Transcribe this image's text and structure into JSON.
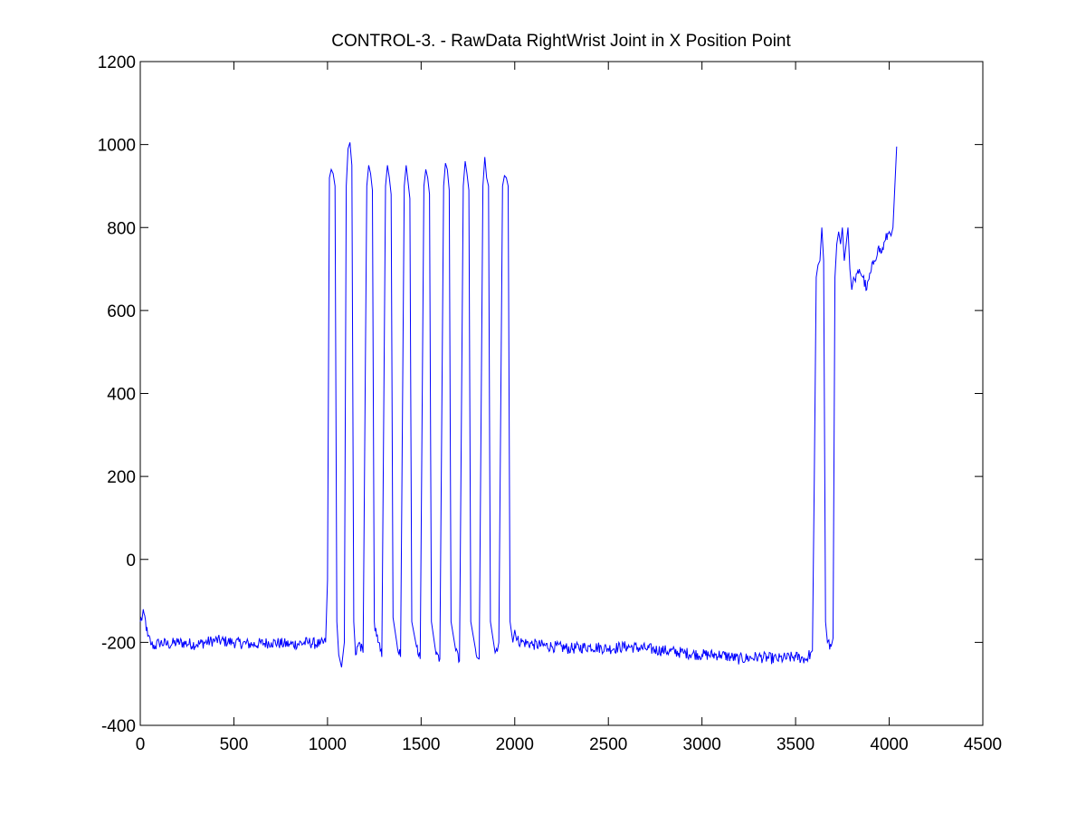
{
  "figure": {
    "background_color": "#ffffff"
  },
  "chart_data": {
    "type": "line",
    "title": "CONTROL-3. - RawData RightWrist Joint in X Position Point",
    "xlabel": "",
    "ylabel": "",
    "xlim": [
      0,
      4500
    ],
    "ylim": [
      -400,
      1200
    ],
    "x_ticks": [
      0,
      500,
      1000,
      1500,
      2000,
      2500,
      3000,
      3500,
      4000,
      4500
    ],
    "y_ticks": [
      -400,
      -200,
      0,
      200,
      400,
      600,
      800,
      1000,
      1200
    ],
    "x_tick_labels": [
      "0",
      "500",
      "1000",
      "1500",
      "2000",
      "2500",
      "3000",
      "3500",
      "4000",
      "4500"
    ],
    "y_tick_labels": [
      "-400",
      "-200",
      "0",
      "200",
      "400",
      "600",
      "800",
      "1000",
      "1200"
    ],
    "grid": false,
    "legend": "none",
    "series": [
      {
        "color": "#0000ff",
        "x": [
          0,
          20,
          40,
          60,
          80,
          100,
          150,
          200,
          300,
          400,
          500,
          600,
          700,
          800,
          900,
          960,
          990,
          1000,
          1010,
          1020,
          1030,
          1040,
          1050,
          1060,
          1075,
          1090,
          1100,
          1110,
          1120,
          1130,
          1140,
          1150,
          1170,
          1190,
          1210,
          1220,
          1230,
          1240,
          1250,
          1270,
          1290,
          1310,
          1320,
          1330,
          1340,
          1350,
          1370,
          1390,
          1410,
          1420,
          1430,
          1440,
          1450,
          1475,
          1495,
          1515,
          1525,
          1535,
          1545,
          1555,
          1580,
          1600,
          1620,
          1630,
          1640,
          1650,
          1660,
          1685,
          1705,
          1725,
          1735,
          1745,
          1755,
          1765,
          1790,
          1810,
          1830,
          1840,
          1850,
          1860,
          1870,
          1895,
          1915,
          1935,
          1945,
          1955,
          1965,
          1975,
          1990,
          2000,
          2010,
          2050,
          2100,
          2200,
          2300,
          2400,
          2500,
          2600,
          2700,
          2800,
          2900,
          3000,
          3100,
          3200,
          3300,
          3400,
          3500,
          3560,
          3580,
          3590,
          3600,
          3610,
          3620,
          3630,
          3640,
          3650,
          3660,
          3670,
          3690,
          3700,
          3710,
          3720,
          3730,
          3740,
          3750,
          3760,
          3770,
          3780,
          3790,
          3800,
          3810,
          3820,
          3840,
          3860,
          3880,
          3900,
          3920,
          3940,
          3960,
          3980,
          4000,
          4010,
          4020,
          4030,
          4040
        ],
        "y": [
          -150,
          -130,
          -185,
          -205,
          -210,
          -200,
          -205,
          -200,
          -205,
          -195,
          -200,
          -205,
          -200,
          -205,
          -200,
          -205,
          -200,
          -50,
          920,
          940,
          930,
          900,
          -150,
          -230,
          -260,
          -200,
          900,
          990,
          1005,
          950,
          -150,
          -230,
          -200,
          -225,
          900,
          950,
          930,
          890,
          -150,
          -200,
          -235,
          900,
          950,
          920,
          880,
          -140,
          -200,
          -235,
          900,
          950,
          910,
          870,
          -150,
          -210,
          -240,
          900,
          940,
          920,
          880,
          -150,
          -230,
          -240,
          900,
          955,
          940,
          890,
          -150,
          -220,
          -245,
          900,
          960,
          930,
          890,
          -150,
          -215,
          -240,
          900,
          970,
          920,
          900,
          -150,
          -225,
          -200,
          900,
          925,
          920,
          900,
          -150,
          -200,
          -170,
          -195,
          -200,
          -205,
          -210,
          -215,
          -210,
          -215,
          -210,
          -215,
          -220,
          -225,
          -230,
          -230,
          -240,
          -235,
          -240,
          -235,
          -240,
          -225,
          -220,
          200,
          680,
          710,
          720,
          800,
          720,
          -150,
          -200,
          -210,
          -190,
          680,
          760,
          790,
          760,
          800,
          720,
          760,
          800,
          700,
          650,
          680,
          670,
          700,
          680,
          650,
          690,
          720,
          750,
          740,
          770,
          790,
          780,
          800,
          900,
          995
        ]
      }
    ]
  }
}
